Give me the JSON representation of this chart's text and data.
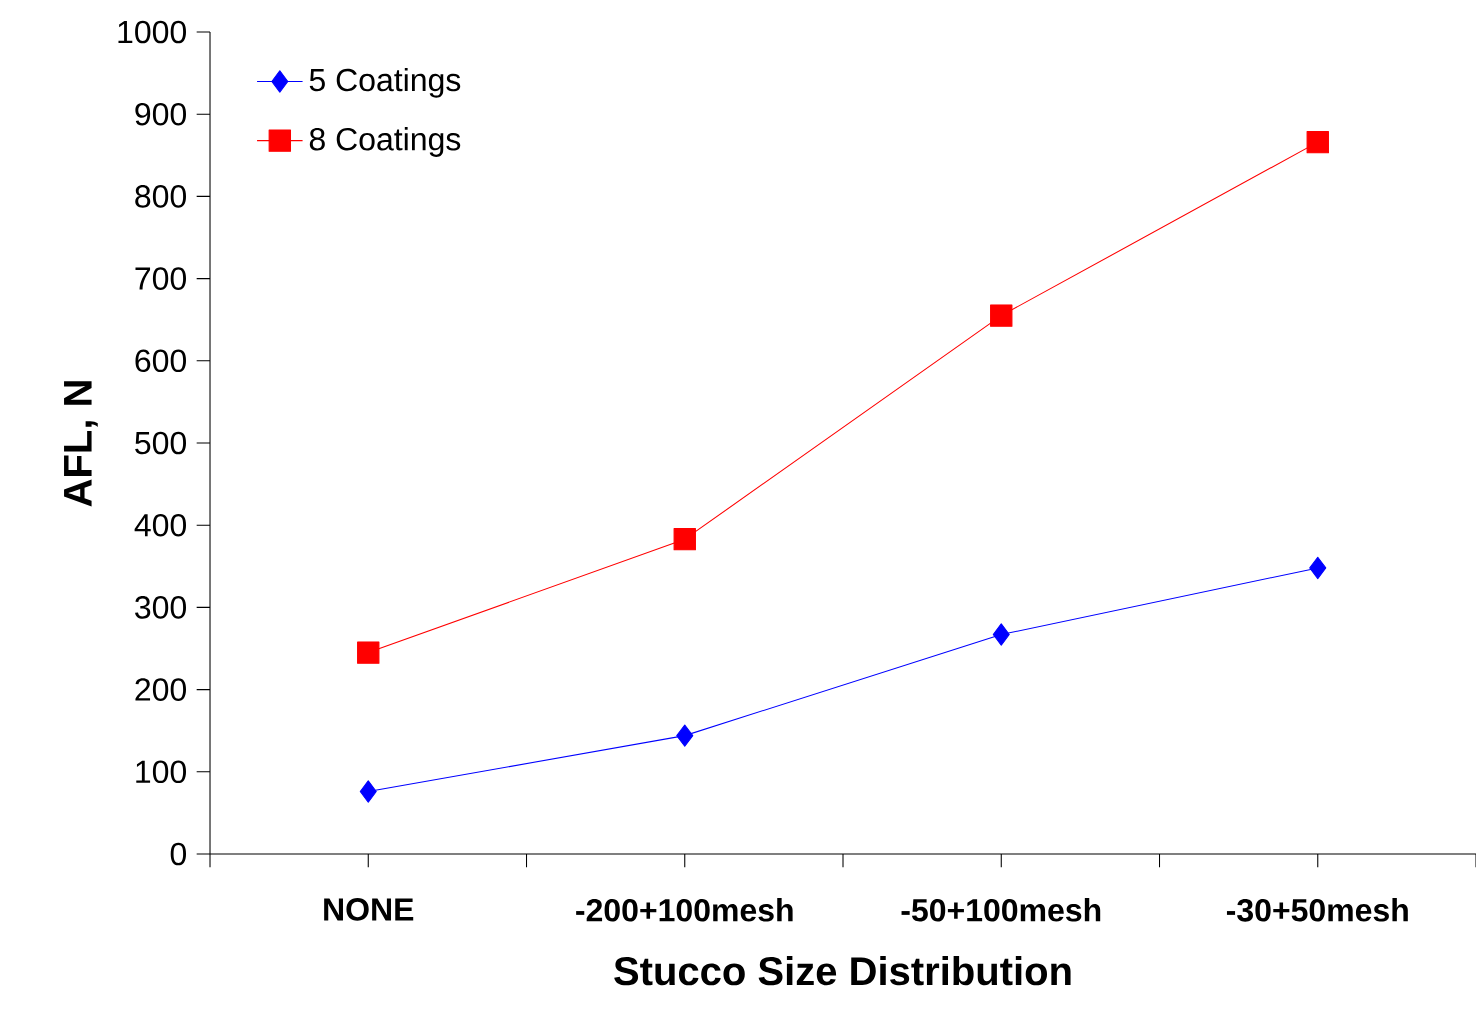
{
  "chart_data": {
    "type": "line",
    "xlabel": "Stucco Size Distribution",
    "ylabel": "AFL, N",
    "categories": [
      "NONE",
      "-200+100mesh",
      "-50+100mesh",
      "-30+50mesh"
    ],
    "series": [
      {
        "name": "5 Coatings",
        "color": "#0000ff",
        "marker": "diamond",
        "values": [
          76,
          144,
          267,
          348
        ]
      },
      {
        "name": "8 Coatings",
        "color": "#ff0000",
        "marker": "square",
        "values": [
          245,
          383,
          655,
          866
        ]
      }
    ],
    "ylim": [
      0,
      1000
    ],
    "yticks": [
      0,
      100,
      200,
      300,
      400,
      500,
      600,
      700,
      800,
      900,
      1000
    ],
    "grid": false,
    "legend": "top left",
    "line_style": "solid"
  }
}
